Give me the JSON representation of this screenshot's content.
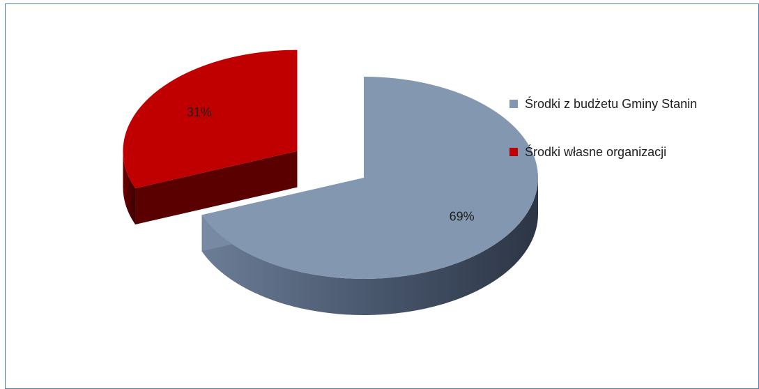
{
  "colors": {
    "frame_border": "#4a7ebb",
    "background": "#ffffff"
  },
  "chart_data": {
    "type": "pie",
    "variant": "3d-exploded",
    "categories": [
      "Środki z budżetu Gminy Stanin",
      "Środki własne organizacji"
    ],
    "values": [
      69,
      31
    ],
    "data_labels": [
      "69%",
      "31%"
    ],
    "colors": [
      "#8497b0",
      "#c00000"
    ],
    "side_colors": [
      "#4a5668",
      "#5a0000"
    ],
    "legend_placement": "right",
    "exploded": [
      false,
      true
    ],
    "grid": false
  }
}
